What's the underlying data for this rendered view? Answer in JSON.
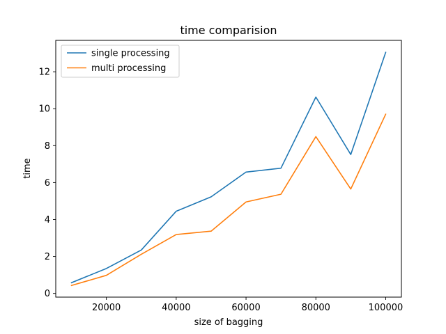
{
  "chart_data": {
    "type": "line",
    "title": "time comparision",
    "xlabel": "size of bagging",
    "ylabel": "time",
    "x": [
      10000,
      20000,
      30000,
      40000,
      50000,
      60000,
      70000,
      80000,
      90000,
      100000
    ],
    "series": [
      {
        "name": "single processing",
        "color": "#1f77b4",
        "values": [
          0.58,
          1.35,
          2.35,
          4.45,
          5.23,
          6.57,
          6.78,
          10.63,
          7.52,
          13.05
        ]
      },
      {
        "name": "multi processing",
        "color": "#ff7f0e",
        "values": [
          0.43,
          0.98,
          2.12,
          3.19,
          3.37,
          4.95,
          5.37,
          8.49,
          5.65,
          9.7
        ]
      }
    ],
    "xlim": [
      5500,
      104500
    ],
    "ylim": [
      -0.2,
      13.7
    ],
    "xticks": [
      20000,
      40000,
      60000,
      80000,
      100000
    ],
    "xtick_labels": [
      "20000",
      "40000",
      "60000",
      "80000",
      "100000"
    ],
    "yticks": [
      0,
      2,
      4,
      6,
      8,
      10,
      12
    ],
    "ytick_labels": [
      "0",
      "2",
      "4",
      "6",
      "8",
      "10",
      "12"
    ],
    "legend": {
      "position": "top-left"
    },
    "grid": false
  }
}
